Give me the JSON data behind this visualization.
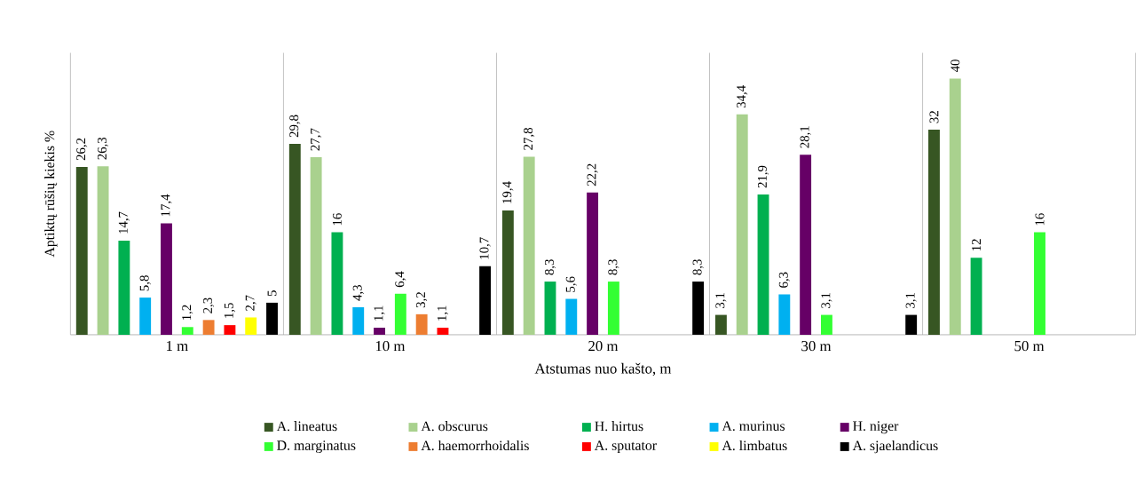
{
  "chart_data": {
    "type": "bar",
    "ylabel": "Aptiktų rūšių kiekis %",
    "xlabel": "Atstumas nuo kašto, m",
    "categories": [
      "1 m",
      "10 m",
      "20 m",
      "30 m",
      "50 m"
    ],
    "ylim": [
      0,
      44
    ],
    "grid": "x",
    "legend": "bottom",
    "series": [
      {
        "name": "A. lineatus",
        "color": "#375623",
        "values": [
          26.2,
          29.8,
          19.4,
          3.1,
          32
        ],
        "value_labels": [
          "26,2",
          "29,8",
          "19,4",
          "3,1",
          "32"
        ]
      },
      {
        "name": "A. obscurus",
        "color": "#a9d18e",
        "values": [
          26.3,
          27.7,
          27.8,
          34.4,
          40
        ],
        "value_labels": [
          "26,3",
          "27,7",
          "27,8",
          "34,4",
          "40"
        ]
      },
      {
        "name": "H. hirtus",
        "color": "#00b050",
        "values": [
          14.7,
          16,
          8.3,
          21.9,
          12
        ],
        "value_labels": [
          "14,7",
          "16",
          "8,3",
          "21,9",
          "12"
        ]
      },
      {
        "name": "A. murinus",
        "color": "#00b0f0",
        "values": [
          5.8,
          4.3,
          5.6,
          6.3,
          null
        ],
        "value_labels": [
          "5,8",
          "4,3",
          "5,6",
          "6,3",
          null
        ]
      },
      {
        "name": "H. niger",
        "color": "#660066",
        "values": [
          17.4,
          1.1,
          22.2,
          28.1,
          null
        ],
        "value_labels": [
          "17,4",
          "1,1",
          "22,2",
          "28,1",
          null
        ]
      },
      {
        "name": "D. marginatus",
        "color": "#33ff33",
        "values": [
          1.2,
          6.4,
          8.3,
          3.1,
          16
        ],
        "value_labels": [
          "1,2",
          "6,4",
          "8,3",
          "3,1",
          "16"
        ]
      },
      {
        "name": "A. haemorrhoidalis",
        "color": "#ed7d31",
        "values": [
          2.3,
          3.2,
          null,
          null,
          null
        ],
        "value_labels": [
          "2,3",
          "3,2",
          null,
          null,
          null
        ]
      },
      {
        "name": "A. sputator",
        "color": "#ff0000",
        "values": [
          1.5,
          1.1,
          null,
          null,
          null
        ],
        "value_labels": [
          "1,5",
          "1,1",
          null,
          null,
          null
        ]
      },
      {
        "name": "A. limbatus",
        "color": "#ffff00",
        "values": [
          2.7,
          null,
          null,
          null,
          null
        ],
        "value_labels": [
          "2,7",
          null,
          null,
          null,
          null
        ]
      },
      {
        "name": "A. sjaelandicus",
        "color": "#000000",
        "values": [
          5,
          10.7,
          8.3,
          3.1,
          null
        ],
        "value_labels": [
          "5",
          "10,7",
          "8,3",
          "3,1",
          null
        ]
      }
    ]
  }
}
